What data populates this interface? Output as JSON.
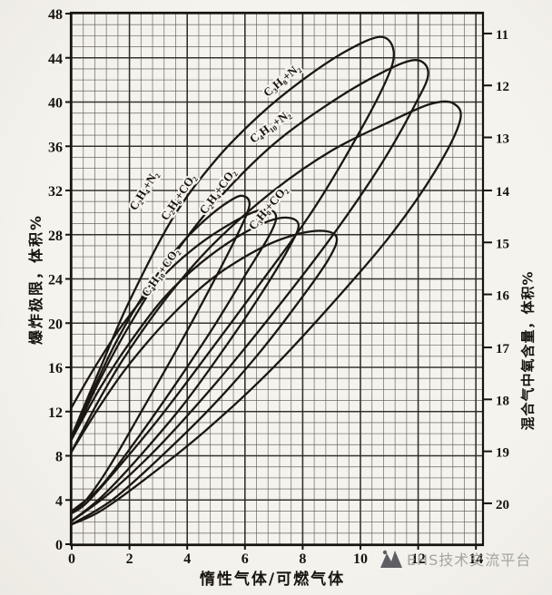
{
  "watermark": {
    "text": "EHS技术交流平台",
    "logo": "mountain-logo-icon",
    "color": "#9b9a96"
  },
  "chart_data": {
    "type": "line",
    "title": "",
    "xlabel": "惰性气体/可燃气体",
    "ylabel_left": "爆炸极限，体积%",
    "ylabel_right": "混合气中氧含量，体积%",
    "xlim": [
      0,
      14.3
    ],
    "ylim": [
      0,
      48
    ],
    "grid": "fine graph paper, major x every 2, major y every 4",
    "x_ticks": [
      0,
      2,
      4,
      6,
      8,
      10,
      12,
      14
    ],
    "y_ticks_left": [
      0,
      4,
      8,
      12,
      16,
      20,
      24,
      28,
      32,
      36,
      40,
      44,
      48
    ],
    "y_ticks_right": [
      11,
      12,
      13,
      14,
      15,
      16,
      17,
      18,
      19,
      20
    ],
    "y_ticks_right_mixture_pos": [
      46.2,
      41.5,
      36.8,
      32.0,
      27.3,
      22.6,
      17.8,
      13.1,
      8.4,
      3.7
    ],
    "line_color": "#1b1712",
    "series": [
      {
        "name": "C₂H₄+N₂",
        "inert": "N2",
        "points": [
          [
            0,
            9.8
          ],
          [
            1,
            16
          ],
          [
            2,
            22
          ],
          [
            3.5,
            29.5
          ],
          [
            5,
            34.8
          ],
          [
            6.5,
            38.8
          ],
          [
            8,
            42
          ],
          [
            9.5,
            44.6
          ],
          [
            10.7,
            45.9
          ],
          [
            11.15,
            44.6
          ],
          [
            10.9,
            42
          ],
          [
            9.8,
            36.5
          ],
          [
            8.3,
            30
          ],
          [
            6.5,
            23.5
          ],
          [
            4.8,
            17.5
          ],
          [
            3,
            11.3
          ],
          [
            1.5,
            6.6
          ],
          [
            0.5,
            3.7
          ],
          [
            0,
            2.8
          ]
        ]
      },
      {
        "name": "C₃H₈+N₂",
        "inert": "N2",
        "points": [
          [
            0,
            9.5
          ],
          [
            1,
            15
          ],
          [
            2,
            19.8
          ],
          [
            3.5,
            26
          ],
          [
            5,
            31
          ],
          [
            7,
            36.2
          ],
          [
            9,
            40
          ],
          [
            10.7,
            42.6
          ],
          [
            11.9,
            43.8
          ],
          [
            12.35,
            42.6
          ],
          [
            11.9,
            39.8
          ],
          [
            10.7,
            34.3
          ],
          [
            9,
            27.8
          ],
          [
            7,
            21
          ],
          [
            5,
            14.6
          ],
          [
            3,
            8.8
          ],
          [
            1.3,
            4.6
          ],
          [
            0,
            2.1
          ]
        ]
      },
      {
        "name": "C₄H₁₀+N₂",
        "inert": "N2",
        "points": [
          [
            0,
            8.4
          ],
          [
            1,
            13.3
          ],
          [
            2,
            17.6
          ],
          [
            3.5,
            23
          ],
          [
            5,
            27.4
          ],
          [
            7,
            32
          ],
          [
            9,
            35.6
          ],
          [
            11,
            38.2
          ],
          [
            12.4,
            39.8
          ],
          [
            13.2,
            39.9
          ],
          [
            13.45,
            38.3
          ],
          [
            12.6,
            33.8
          ],
          [
            11,
            27.8
          ],
          [
            8.9,
            21.4
          ],
          [
            6.8,
            15.5
          ],
          [
            4.6,
            10.2
          ],
          [
            2.5,
            5.8
          ],
          [
            1,
            3
          ],
          [
            0,
            1.8
          ]
        ]
      },
      {
        "name": "C₂H₄+CO₂",
        "inert": "CO2",
        "points": [
          [
            0,
            9.8
          ],
          [
            0.8,
            14.3
          ],
          [
            1.6,
            18.6
          ],
          [
            2.6,
            23
          ],
          [
            3.6,
            26.6
          ],
          [
            4.6,
            29.3
          ],
          [
            5.5,
            31.1
          ],
          [
            5.95,
            31.5
          ],
          [
            6.15,
            30.6
          ],
          [
            5.7,
            27.8
          ],
          [
            4.8,
            23.2
          ],
          [
            3.7,
            17.9
          ],
          [
            2.5,
            12.4
          ],
          [
            1.3,
            7
          ],
          [
            0.5,
            4
          ],
          [
            0,
            2.8
          ]
        ]
      },
      {
        "name": "C₂H₆+CO₂",
        "inert": "CO2",
        "points": [
          [
            0,
            12.4
          ],
          [
            0.8,
            16
          ],
          [
            1.8,
            20
          ],
          [
            3,
            23.8
          ],
          [
            4.2,
            26.7
          ],
          [
            5.5,
            29
          ],
          [
            6.5,
            30.2
          ],
          [
            7.05,
            29.9
          ],
          [
            6.9,
            28.2
          ],
          [
            6,
            24.3
          ],
          [
            4.9,
            19.6
          ],
          [
            3.6,
            14.5
          ],
          [
            2.2,
            9.3
          ],
          [
            1,
            5.2
          ],
          [
            0,
            3
          ]
        ]
      },
      {
        "name": "C₃H₈+CO₂",
        "inert": "CO2",
        "points": [
          [
            0,
            9.5
          ],
          [
            1,
            14.2
          ],
          [
            2,
            18.2
          ],
          [
            3.2,
            22.3
          ],
          [
            4.5,
            25.5
          ],
          [
            6,
            28.2
          ],
          [
            7.2,
            29.5
          ],
          [
            7.85,
            29
          ],
          [
            7.5,
            26.7
          ],
          [
            6.5,
            22.4
          ],
          [
            5.2,
            17.4
          ],
          [
            3.8,
            12.4
          ],
          [
            2.2,
            7.5
          ],
          [
            1,
            4.2
          ],
          [
            0,
            2.1
          ]
        ]
      },
      {
        "name": "C₄H₁₀+CO₂",
        "inert": "CO2",
        "points": [
          [
            0,
            8.4
          ],
          [
            1,
            12.6
          ],
          [
            2,
            16.3
          ],
          [
            3.5,
            20.8
          ],
          [
            5,
            24.3
          ],
          [
            6.8,
            27.1
          ],
          [
            8.3,
            28.3
          ],
          [
            9.15,
            27.9
          ],
          [
            8.9,
            25.8
          ],
          [
            7.8,
            21.7
          ],
          [
            6.4,
            17
          ],
          [
            4.8,
            12.3
          ],
          [
            3,
            7.7
          ],
          [
            1.4,
            4
          ],
          [
            0,
            1.8
          ]
        ]
      }
    ],
    "curve_labels": [
      {
        "text": "C₂H₄+N₂",
        "x": 2.61,
        "y": 31.8,
        "rot": -58
      },
      {
        "text": "C₂H₆+CO₂",
        "x": 3.8,
        "y": 31.2,
        "rot": -56
      },
      {
        "text": "C₂H₄+CO₂",
        "x": 5.16,
        "y": 31.7,
        "rot": -54
      },
      {
        "text": "C₃H₈+N₂",
        "x": 7.36,
        "y": 41.7,
        "rot": -40
      },
      {
        "text": "C₄H₁₀+N₂",
        "x": 6.95,
        "y": 37.5,
        "rot": -36
      },
      {
        "text": "C₃H₈+CO₂",
        "x": 6.9,
        "y": 30.2,
        "rot": -50
      },
      {
        "text": "C₄H₁₀+CO₂",
        "x": 3.18,
        "y": 24.4,
        "rot": -55
      }
    ]
  }
}
